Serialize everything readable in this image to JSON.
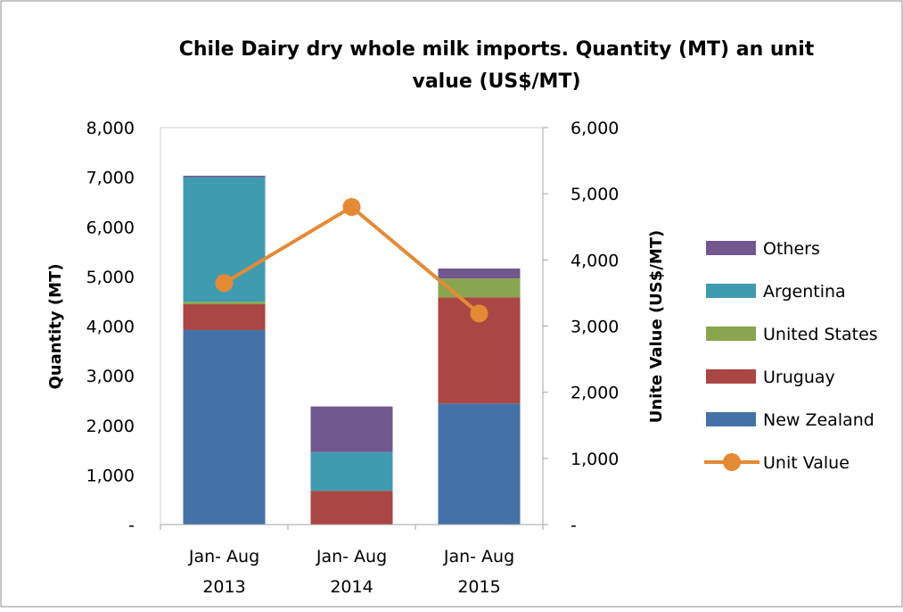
{
  "chart_data": {
    "type": "bar",
    "stacked": true,
    "title_line1": "Chile Dairy dry whole milk imports. Quantity (MT) an unit",
    "title_line2": "value (US$/MT)",
    "ylabel_left": "Quantity (MT)",
    "ylabel_right": "Unite Value (US$/MT)",
    "categories": [
      [
        "Jan- Aug",
        "2013"
      ],
      [
        "Jan- Aug",
        "2014"
      ],
      [
        "Jan- Aug",
        "2015"
      ]
    ],
    "ylim_left": [
      0,
      8000
    ],
    "ylim_right": [
      0,
      6000
    ],
    "yticks_left": [
      "-",
      "1,000",
      "2,000",
      "3,000",
      "4,000",
      "5,000",
      "6,000",
      "7,000",
      "8,000"
    ],
    "yticks_right": [
      "-",
      "1,000",
      "2,000",
      "3,000",
      "4,000",
      "5,000",
      "6,000"
    ],
    "grid": false,
    "legend_position": "right",
    "series": [
      {
        "name": "New Zealand",
        "color": "#4472A8",
        "values": [
          3920,
          0,
          2440
        ]
      },
      {
        "name": "Uruguay",
        "color": "#AA4643",
        "values": [
          520,
          680,
          2140
        ]
      },
      {
        "name": "United States",
        "color": "#89A54E",
        "values": [
          50,
          0,
          380
        ]
      },
      {
        "name": "Argentina",
        "color": "#3F9BB0",
        "values": [
          2510,
          780,
          0
        ]
      },
      {
        "name": "Others",
        "color": "#71588F",
        "values": [
          30,
          920,
          200
        ]
      }
    ],
    "line_series": {
      "name": "Unit Value",
      "color": "#E58A34",
      "axis": "right",
      "values": [
        3650,
        4800,
        3190
      ]
    },
    "legend_order": [
      "Others",
      "Argentina",
      "United States",
      "Uruguay",
      "New Zealand",
      "Unit Value"
    ]
  }
}
